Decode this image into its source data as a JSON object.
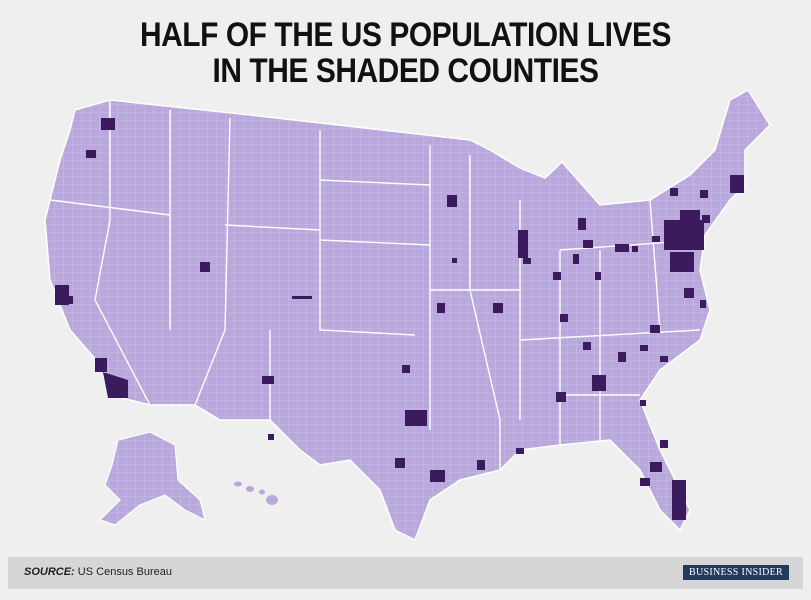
{
  "title": [
    "HALF OF THE US POPULATION LIVES",
    "IN THE SHADED COUNTIES"
  ],
  "footer": {
    "source_label": "SOURCE:",
    "source": "US Census Bureau",
    "logo": "BUSINESS INSIDER"
  }
}
